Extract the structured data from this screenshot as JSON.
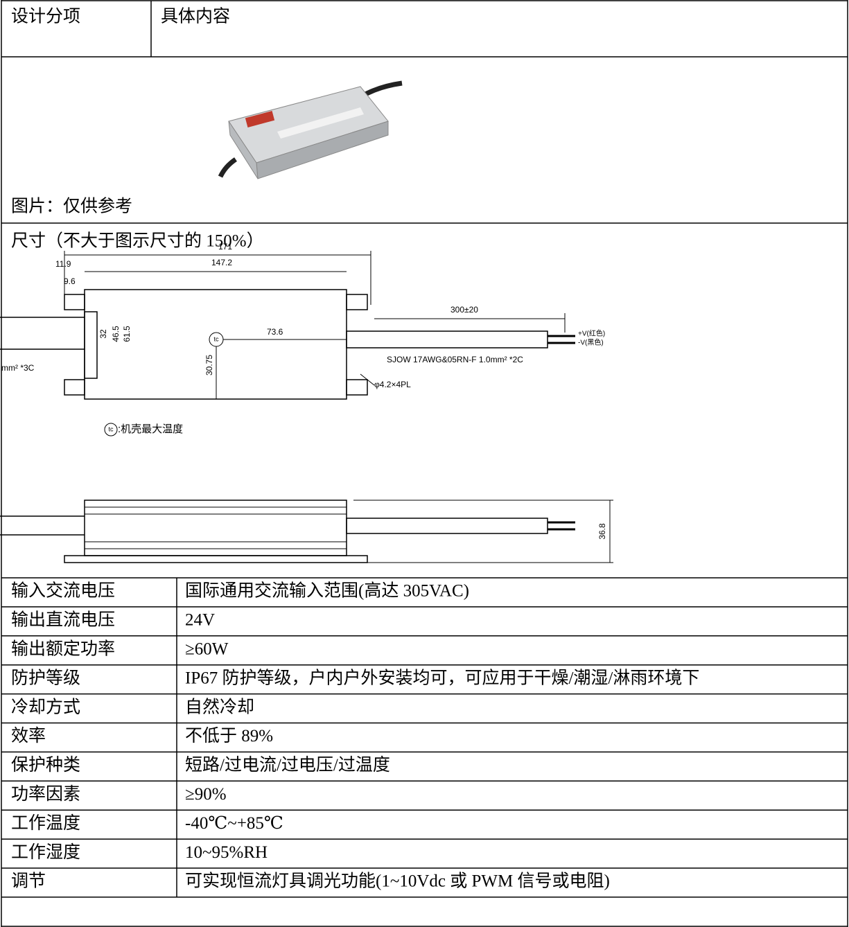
{
  "header": [
    "设计分项",
    "具体内容"
  ],
  "image_row": {
    "caption": "图片：仅供参考"
  },
  "dimension_row": {
    "title": "尺寸（不大于图示尺寸的 150%）",
    "drawing_labels": {
      "overall_length": "171",
      "body_length": "147.2",
      "left_offset": "11.9",
      "flange_offset": "9.6",
      "inner_width": "32",
      "mid_width": "46.5",
      "outer_width": "61.5",
      "tc_x": "73.6",
      "tc_y": "30.75",
      "cable_length": "300±20",
      "positive": "+V(红色)",
      "negative": "-V(黑色)",
      "output_cable": "SJOW 17AWG&05RN-F 1.0mm² *2C",
      "input_cable": "mm² *3C",
      "holes": "φ4.2×4PL",
      "tc_symbol": "tc",
      "tc_note": ":机壳最大温度",
      "height": "36.8"
    }
  },
  "rows": [
    [
      "输入交流电压",
      "国际通用交流输入范围(高达 305VAC)"
    ],
    [
      "输出直流电压",
      "24V"
    ],
    [
      "输出额定功率",
      "≥60W"
    ],
    [
      "防护等级",
      "IP67 防护等级，户内户外安装均可，可应用于干燥/潮湿/淋雨环境下"
    ],
    [
      "冷却方式",
      "自然冷却"
    ],
    [
      "效率",
      "不低于 89%"
    ],
    [
      "保护种类",
      "短路/过电流/过电压/过温度"
    ],
    [
      "功率因素",
      "≥90%"
    ],
    [
      "工作温度",
      "-40℃~+85℃"
    ],
    [
      "工作湿度",
      "10~95%RH"
    ],
    [
      "调节",
      "可实现恒流灯具调光功能(1~10Vdc 或 PWM 信号或电阻)"
    ]
  ]
}
